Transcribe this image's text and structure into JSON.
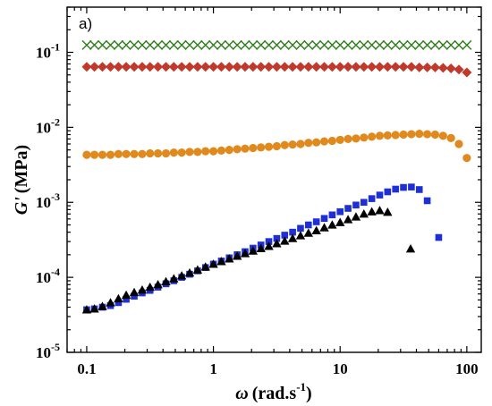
{
  "chart_data": {
    "type": "scatter",
    "panel_label": "a)",
    "xscale": "log",
    "yscale": "log",
    "xlim": [
      0.07,
      130
    ],
    "ylim": [
      1e-05,
      0.4
    ],
    "grid": false,
    "xlabel": {
      "symbol": "ω",
      "text": "(rad.s",
      "sup": "-1",
      "close": ")"
    },
    "ylabel": {
      "symbol": "G'",
      "text": "(MPa)"
    },
    "xticks": [
      {
        "value": 0.1,
        "label": "0.1"
      },
      {
        "value": 1,
        "label": "1"
      },
      {
        "value": 10,
        "label": "10"
      },
      {
        "value": 100,
        "label": "100"
      }
    ],
    "yticks": [
      {
        "value": 1e-05,
        "base": "10",
        "exp": "-5"
      },
      {
        "value": 0.0001,
        "base": "10",
        "exp": "-4"
      },
      {
        "value": 0.001,
        "base": "10",
        "exp": "-3"
      },
      {
        "value": 0.01,
        "base": "10",
        "exp": "-2"
      },
      {
        "value": 0.1,
        "base": "10",
        "exp": "-1"
      }
    ],
    "series": [
      {
        "marker": "x",
        "color": "#2e7d1a",
        "x": [
          0.1,
          0.115,
          0.133,
          0.154,
          0.178,
          0.205,
          0.237,
          0.274,
          0.316,
          0.365,
          0.422,
          0.487,
          0.562,
          0.649,
          0.75,
          0.866,
          1.0,
          1.155,
          1.334,
          1.54,
          1.778,
          2.054,
          2.371,
          2.738,
          3.162,
          3.652,
          4.217,
          4.87,
          5.623,
          6.494,
          7.499,
          8.66,
          10.0,
          11.55,
          13.34,
          15.4,
          17.78,
          20.54,
          23.71,
          27.38,
          31.62,
          36.52,
          42.17,
          48.7,
          56.23,
          64.94,
          74.99,
          86.6,
          100.0
        ],
        "y": [
          0.125,
          0.125,
          0.125,
          0.125,
          0.125,
          0.125,
          0.125,
          0.125,
          0.125,
          0.125,
          0.125,
          0.125,
          0.125,
          0.125,
          0.125,
          0.125,
          0.125,
          0.125,
          0.125,
          0.125,
          0.125,
          0.125,
          0.125,
          0.125,
          0.125,
          0.125,
          0.125,
          0.125,
          0.125,
          0.125,
          0.125,
          0.125,
          0.125,
          0.125,
          0.125,
          0.125,
          0.125,
          0.125,
          0.125,
          0.125,
          0.125,
          0.125,
          0.125,
          0.125,
          0.125,
          0.125,
          0.125,
          0.125,
          0.125
        ]
      },
      {
        "marker": "diamond",
        "color": "#c0392b",
        "x": [
          0.1,
          0.115,
          0.133,
          0.154,
          0.178,
          0.205,
          0.237,
          0.274,
          0.316,
          0.365,
          0.422,
          0.487,
          0.562,
          0.649,
          0.75,
          0.866,
          1.0,
          1.155,
          1.334,
          1.54,
          1.778,
          2.054,
          2.371,
          2.738,
          3.162,
          3.652,
          4.217,
          4.87,
          5.623,
          6.494,
          7.499,
          8.66,
          10.0,
          11.55,
          13.34,
          15.4,
          17.78,
          20.54,
          23.71,
          27.38,
          31.62,
          36.52,
          42.17,
          48.7,
          56.23,
          64.94,
          74.99,
          86.6,
          100.0
        ],
        "y": [
          0.064,
          0.064,
          0.064,
          0.064,
          0.064,
          0.064,
          0.064,
          0.064,
          0.064,
          0.064,
          0.064,
          0.064,
          0.064,
          0.064,
          0.064,
          0.064,
          0.064,
          0.064,
          0.064,
          0.064,
          0.064,
          0.064,
          0.064,
          0.064,
          0.064,
          0.064,
          0.064,
          0.064,
          0.064,
          0.064,
          0.064,
          0.064,
          0.064,
          0.064,
          0.064,
          0.064,
          0.064,
          0.064,
          0.064,
          0.064,
          0.064,
          0.064,
          0.063,
          0.063,
          0.063,
          0.062,
          0.061,
          0.059,
          0.054
        ]
      },
      {
        "marker": "circle",
        "color": "#e08a1e",
        "x": [
          0.1,
          0.115,
          0.133,
          0.154,
          0.178,
          0.205,
          0.237,
          0.274,
          0.316,
          0.365,
          0.422,
          0.487,
          0.562,
          0.649,
          0.75,
          0.866,
          1.0,
          1.155,
          1.334,
          1.54,
          1.778,
          2.054,
          2.371,
          2.738,
          3.162,
          3.652,
          4.217,
          4.87,
          5.623,
          6.494,
          7.499,
          8.66,
          10.0,
          11.55,
          13.34,
          15.4,
          17.78,
          20.54,
          23.71,
          27.38,
          31.62,
          36.52,
          42.17,
          48.7,
          56.23,
          64.94,
          74.99,
          86.6,
          100.0
        ],
        "y": [
          0.0043,
          0.0043,
          0.0043,
          0.0043,
          0.0044,
          0.0044,
          0.0044,
          0.0044,
          0.0045,
          0.0045,
          0.0045,
          0.0046,
          0.0046,
          0.0047,
          0.0047,
          0.0048,
          0.0048,
          0.0049,
          0.005,
          0.0051,
          0.0052,
          0.0053,
          0.0054,
          0.0055,
          0.0056,
          0.0058,
          0.0059,
          0.006,
          0.0062,
          0.0063,
          0.0065,
          0.0066,
          0.0068,
          0.007,
          0.0071,
          0.0073,
          0.0075,
          0.0077,
          0.0078,
          0.0079,
          0.008,
          0.0081,
          0.0082,
          0.0081,
          0.008,
          0.0077,
          0.0072,
          0.006,
          0.0039
        ]
      },
      {
        "marker": "square",
        "color": "#1f2fd6",
        "x": [
          0.1,
          0.115,
          0.133,
          0.154,
          0.178,
          0.205,
          0.237,
          0.274,
          0.316,
          0.365,
          0.422,
          0.487,
          0.562,
          0.649,
          0.75,
          0.866,
          1.0,
          1.155,
          1.334,
          1.54,
          1.778,
          2.054,
          2.371,
          2.738,
          3.162,
          3.652,
          4.217,
          4.87,
          5.623,
          6.494,
          7.499,
          8.66,
          10.0,
          11.55,
          13.34,
          15.4,
          17.78,
          20.54,
          23.71,
          27.38,
          31.62,
          36.52,
          42.17,
          48.7,
          60.0
        ],
        "y": [
          3.7e-05,
          3.8e-05,
          4e-05,
          4.2e-05,
          4.6e-05,
          5.1e-05,
          5.6e-05,
          6.2e-05,
          6.7e-05,
          7.4e-05,
          8.2e-05,
          9e-05,
          0.0001,
          0.00011,
          0.000122,
          0.000135,
          0.00015,
          0.000165,
          0.000182,
          0.0002,
          0.00022,
          0.000245,
          0.00027,
          0.0003,
          0.00033,
          0.000365,
          0.0004,
          0.00045,
          0.0005,
          0.00055,
          0.00061,
          0.00068,
          0.00075,
          0.00083,
          0.00092,
          0.001,
          0.00112,
          0.00125,
          0.00138,
          0.0015,
          0.00158,
          0.0016,
          0.00148,
          0.00105,
          0.00034
        ]
      },
      {
        "marker": "triangle",
        "color": "#000000",
        "x": [
          0.1,
          0.115,
          0.133,
          0.154,
          0.178,
          0.205,
          0.237,
          0.274,
          0.316,
          0.365,
          0.422,
          0.487,
          0.562,
          0.649,
          0.75,
          0.866,
          1.0,
          1.155,
          1.334,
          1.54,
          1.778,
          2.054,
          2.371,
          2.738,
          3.162,
          3.652,
          4.217,
          4.87,
          5.623,
          6.494,
          7.499,
          8.66,
          10.0,
          11.55,
          13.34,
          15.4,
          17.78,
          20.54,
          23.71,
          36.0
        ],
        "y": [
          3.7e-05,
          3.8e-05,
          4.1e-05,
          4.6e-05,
          5.2e-05,
          5.8e-05,
          6.3e-05,
          6.8e-05,
          7.4e-05,
          8e-05,
          8.8e-05,
          9.6e-05,
          0.000105,
          0.000115,
          0.000126,
          0.000138,
          0.00015,
          0.000163,
          0.000177,
          0.000192,
          0.000208,
          0.000225,
          0.000243,
          0.00026,
          0.000282,
          0.000305,
          0.00033,
          0.00036,
          0.00039,
          0.00042,
          0.00046,
          0.0005,
          0.00054,
          0.00059,
          0.00064,
          0.0007,
          0.00075,
          0.00078,
          0.00074,
          0.00024
        ]
      }
    ]
  }
}
